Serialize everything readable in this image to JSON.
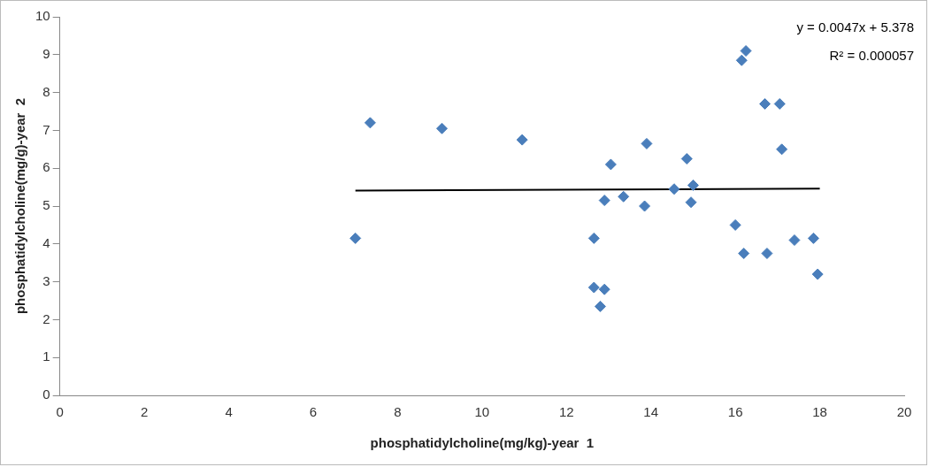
{
  "chart_data": {
    "type": "scatter",
    "xlabel": "phosphatidylcholine(mg/kg)-year  1",
    "ylabel": "phosphatidylcholine(mg/g)-year  2",
    "xlim": [
      0,
      20
    ],
    "xticks": [
      0,
      2,
      4,
      6,
      8,
      10,
      12,
      14,
      16,
      18,
      20
    ],
    "ylim": [
      0,
      10
    ],
    "yticks": [
      0,
      1,
      2,
      3,
      4,
      5,
      6,
      7,
      8,
      9,
      10
    ],
    "grid": false,
    "legend": false,
    "marker": "diamond",
    "annotations": [
      "y = 0.0047x  + 5.378",
      "R² = 0.000057"
    ],
    "series": [
      {
        "type": "scatter",
        "color": "#4a7ebb",
        "x": [
          7.0,
          7.35,
          9.05,
          10.95,
          12.65,
          12.65,
          12.9,
          12.8,
          12.9,
          13.05,
          13.35,
          13.85,
          13.9,
          14.55,
          14.85,
          14.95,
          15.0,
          16.0,
          16.15,
          16.25,
          16.2,
          16.7,
          16.75,
          17.05,
          17.1,
          17.4,
          17.85,
          17.95
        ],
        "values": [
          4.15,
          7.2,
          7.05,
          6.75,
          4.15,
          2.85,
          2.8,
          2.35,
          5.15,
          6.1,
          5.25,
          5.0,
          6.65,
          5.45,
          6.25,
          5.1,
          5.55,
          4.5,
          8.85,
          9.1,
          3.75,
          7.7,
          3.75,
          7.7,
          6.5,
          4.1,
          4.15,
          3.2
        ]
      },
      {
        "type": "line",
        "color": "#000000",
        "x": [
          7,
          18
        ],
        "values": [
          5.41,
          5.46
        ],
        "marker": "none"
      }
    ]
  }
}
